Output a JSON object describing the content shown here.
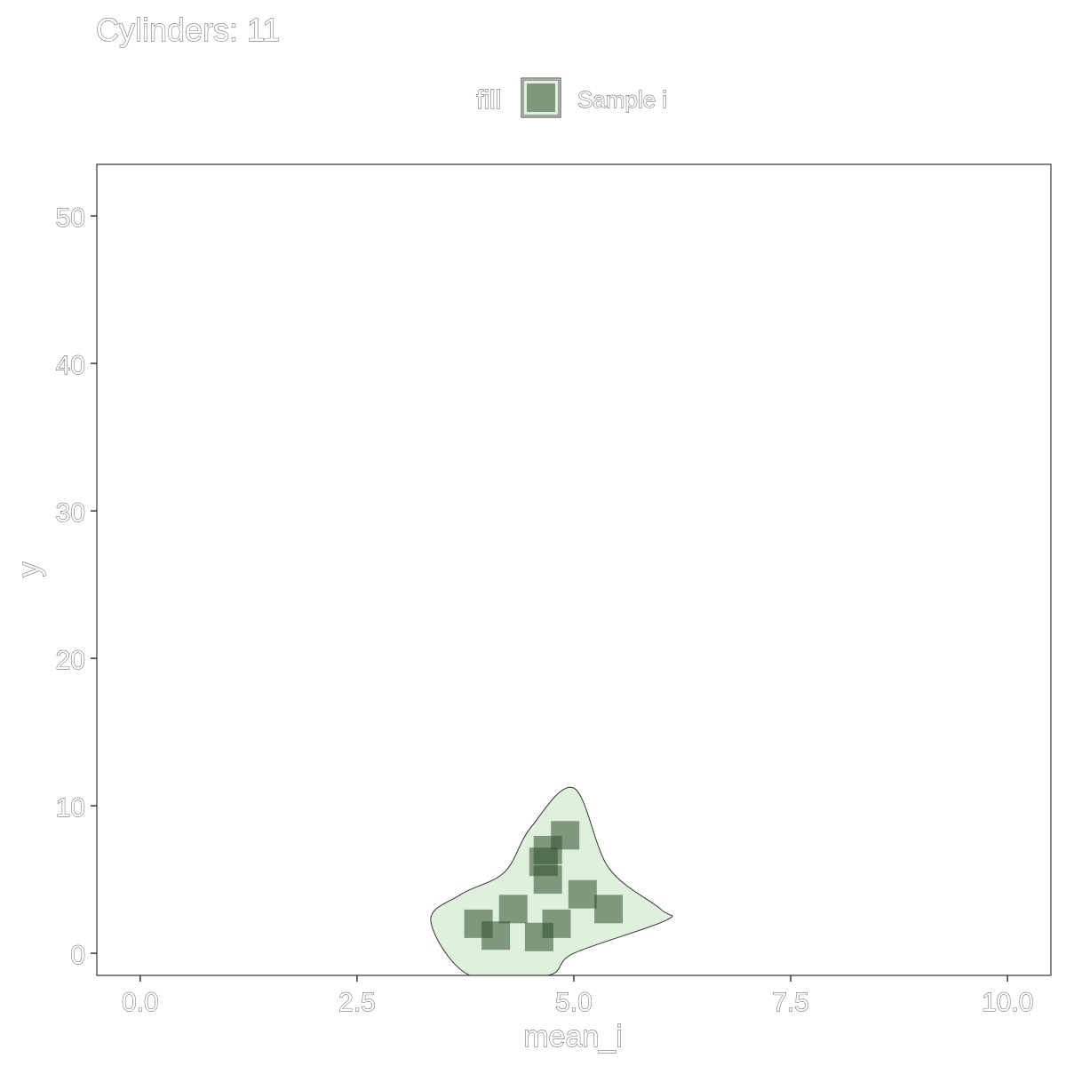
{
  "chart_data": {
    "type": "scatter",
    "title": "Cylinders: 11",
    "xlabel": "mean_i",
    "ylabel": "y",
    "xlim": [
      -0.5,
      10.5
    ],
    "ylim": [
      -1.5,
      53.5
    ],
    "x_ticks": [
      0.0,
      2.5,
      5.0,
      7.5,
      10.0
    ],
    "x_tick_labels": [
      "0.0",
      "2.5",
      "5.0",
      "7.5",
      "10.0"
    ],
    "y_ticks": [
      0,
      10,
      20,
      30,
      40,
      50
    ],
    "y_tick_labels": [
      "0",
      "10",
      "20",
      "30",
      "40",
      "50"
    ],
    "grid": false,
    "legend": {
      "title": "fill",
      "position": "top",
      "entries": [
        "Sample i"
      ]
    },
    "colors": {
      "point": "#2f4f2f",
      "hull_fill": "#dff0dc",
      "hull_stroke": "#333333",
      "frame": "#333333"
    },
    "series": [
      {
        "name": "Sample i",
        "points": [
          {
            "x": 3.9,
            "y": 2.0
          },
          {
            "x": 4.1,
            "y": 1.2
          },
          {
            "x": 4.3,
            "y": 3.0
          },
          {
            "x": 4.6,
            "y": 1.1
          },
          {
            "x": 4.65,
            "y": 6.2
          },
          {
            "x": 4.7,
            "y": 5.0
          },
          {
            "x": 4.7,
            "y": 7.0
          },
          {
            "x": 4.8,
            "y": 2.0
          },
          {
            "x": 4.9,
            "y": 8.0
          },
          {
            "x": 5.1,
            "y": 4.0
          },
          {
            "x": 5.4,
            "y": 3.0
          }
        ]
      }
    ],
    "hull": [
      {
        "x": 5.0,
        "y": 11.2
      },
      {
        "x": 5.4,
        "y": 5.8
      },
      {
        "x": 6.0,
        "y": 3.0
      },
      {
        "x": 6.05,
        "y": 2.2
      },
      {
        "x": 5.0,
        "y": 0.0
      },
      {
        "x": 4.7,
        "y": -1.5
      },
      {
        "x": 3.8,
        "y": -1.5
      },
      {
        "x": 3.35,
        "y": 2.2
      },
      {
        "x": 3.7,
        "y": 4.0
      },
      {
        "x": 4.2,
        "y": 5.5
      },
      {
        "x": 4.5,
        "y": 8.5
      }
    ]
  }
}
